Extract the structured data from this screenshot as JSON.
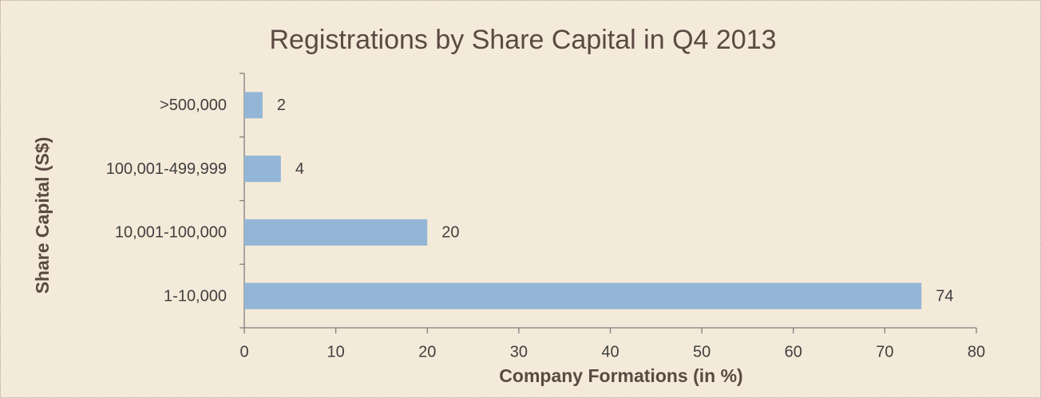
{
  "chart_data": {
    "type": "bar",
    "orientation": "horizontal",
    "title": "Registrations by Share Capital in Q4 2013",
    "x_label": "Company Formations (in %)",
    "y_label": "Share Capital (S$)",
    "categories": [
      "1-10,000",
      "10,001-100,000",
      "100,001-499,999",
      ">500,000"
    ],
    "values": [
      74,
      20,
      4,
      2
    ],
    "color": "#94b6d6",
    "xlim": [
      0,
      80
    ],
    "xticks": [
      0,
      10,
      20,
      30,
      40,
      50,
      60,
      70,
      80
    ],
    "grid": false
  }
}
